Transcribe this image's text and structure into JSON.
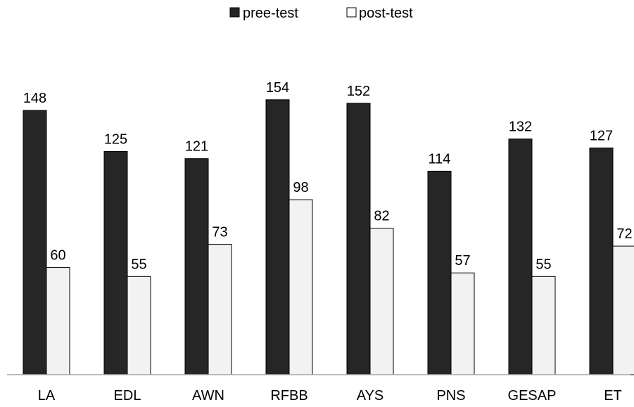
{
  "chart_data": {
    "type": "bar",
    "categories": [
      "LA",
      "EDL",
      "AWN",
      "RFBB",
      "AYS",
      "PNS",
      "GESAP",
      "ET"
    ],
    "series": [
      {
        "name": "pree-test",
        "values": [
          148,
          125,
          121,
          154,
          152,
          114,
          132,
          127
        ],
        "color": "#262626"
      },
      {
        "name": "post-test",
        "values": [
          60,
          55,
          73,
          98,
          82,
          57,
          55,
          72
        ],
        "color": "#f2f2f2"
      }
    ],
    "ylim": [
      0,
      160
    ],
    "grid": false,
    "legend": "top-center",
    "data_labels": true,
    "title": "",
    "xlabel": "",
    "ylabel": ""
  }
}
